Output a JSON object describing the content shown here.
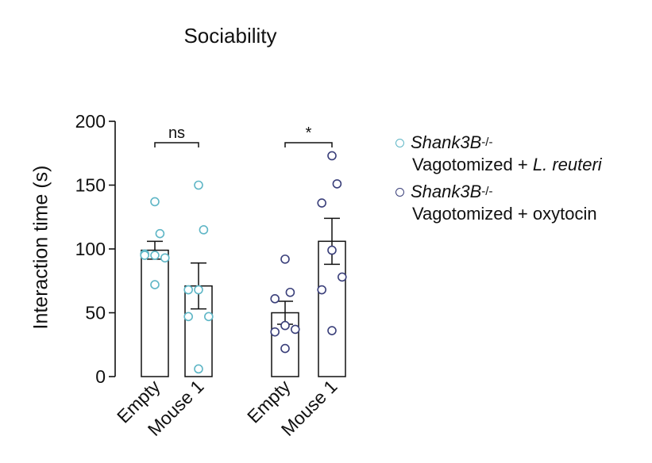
{
  "chart_data": {
    "type": "bar",
    "title": "Sociability",
    "ylabel": "Interaction time (s)",
    "xlabel": "",
    "ylim": [
      0,
      200
    ],
    "yticks": [
      0,
      50,
      100,
      150,
      200
    ],
    "categories": [
      "Empty",
      "Mouse 1",
      "Empty",
      "Mouse 1"
    ],
    "groups": [
      {
        "name_gene": "Shank3B",
        "name_sup": "-/-",
        "name_prefix": "Vagotomized + ",
        "name_treatment": "L. reuteri",
        "treatment_italic": true,
        "color": "#5fb6c6",
        "bars": [
          {
            "category": "Empty",
            "mean": 99,
            "sem": 7,
            "points": [
              137,
              112,
              96,
              95,
              93,
              95,
              72
            ]
          },
          {
            "category": "Mouse 1",
            "mean": 71,
            "sem": 18,
            "points": [
              150,
              115,
              68,
              68,
              47,
              47,
              6
            ]
          }
        ],
        "significance": {
          "label": "ns"
        }
      },
      {
        "name_gene": "Shank3B",
        "name_sup": "-/-",
        "name_prefix": "Vagotomized + ",
        "name_treatment": "oxytocin",
        "treatment_italic": false,
        "color": "#3a3f7a",
        "bars": [
          {
            "category": "Empty",
            "mean": 50,
            "sem": 9,
            "points": [
              92,
              66,
              61,
              40,
              37,
              35,
              22
            ]
          },
          {
            "category": "Mouse 1",
            "mean": 106,
            "sem": 18,
            "points": [
              173,
              151,
              136,
              99,
              78,
              68,
              36
            ]
          }
        ],
        "significance": {
          "label": "*"
        }
      }
    ]
  }
}
